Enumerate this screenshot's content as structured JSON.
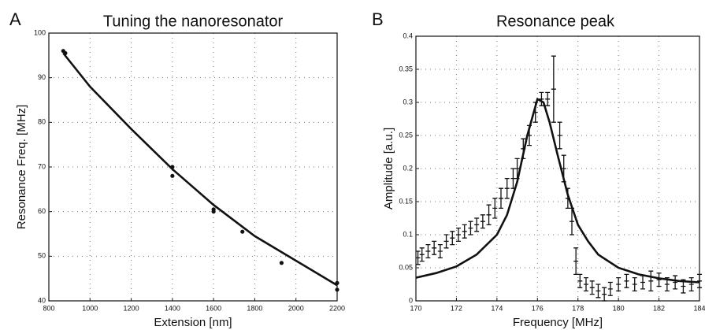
{
  "chart_data": [
    {
      "type": "scatter",
      "label": "A",
      "title": "Tuning the nanoresonator",
      "xlabel": "Extension [nm]",
      "ylabel": "Resonance Freq. [MHz]",
      "xlim": [
        800,
        2200
      ],
      "ylim": [
        40,
        100
      ],
      "xticks": [
        800,
        1000,
        1200,
        1400,
        1600,
        1800,
        2000,
        2200
      ],
      "yticks": [
        40,
        50,
        60,
        70,
        80,
        90,
        100
      ],
      "grid": true,
      "series": [
        {
          "type": "scatter",
          "color": "#111111",
          "x": [
            870,
            880,
            1400,
            1400,
            1600,
            1600,
            1740,
            1930,
            2200,
            2200
          ],
          "values": [
            96,
            95.5,
            70,
            68,
            60.5,
            60,
            55.5,
            48.5,
            44,
            42.5
          ]
        },
        {
          "type": "line",
          "color": "#111111",
          "x": [
            870,
            1000,
            1200,
            1400,
            1600,
            1800,
            2000,
            2200
          ],
          "values": [
            95.5,
            88,
            78.5,
            69.5,
            61.5,
            54.5,
            49,
            43.5
          ]
        }
      ]
    },
    {
      "type": "errorbar",
      "label": "B",
      "title": "Resonance peak",
      "xlabel": "Frequency [MHz]",
      "ylabel": "Amplitude [a.u.]",
      "xlim": [
        170,
        184
      ],
      "ylim": [
        0,
        0.4
      ],
      "xticks": [
        170,
        172,
        174,
        176,
        178,
        180,
        182,
        184
      ],
      "yticks": [
        0,
        0.05,
        0.1,
        0.15,
        0.2,
        0.25,
        0.3,
        0.35,
        0.4
      ],
      "grid": true,
      "series": [
        {
          "type": "errorbar",
          "color": "#111111",
          "x": [
            170.1,
            170.3,
            170.6,
            170.9,
            171.2,
            171.5,
            171.8,
            172.1,
            172.4,
            172.7,
            173.0,
            173.3,
            173.6,
            173.9,
            174.2,
            174.5,
            174.8,
            175.0,
            175.3,
            175.6,
            175.9,
            176.2,
            176.5,
            176.8,
            177.1,
            177.3,
            177.5,
            177.7,
            177.9,
            178.1,
            178.4,
            178.7,
            179.0,
            179.3,
            179.6,
            180.0,
            180.4,
            180.8,
            181.2,
            181.6,
            182.0,
            182.4,
            182.8,
            183.2,
            183.6,
            184.0
          ],
          "values": [
            0.065,
            0.07,
            0.075,
            0.08,
            0.075,
            0.09,
            0.095,
            0.1,
            0.105,
            0.11,
            0.115,
            0.12,
            0.13,
            0.14,
            0.155,
            0.17,
            0.185,
            0.2,
            0.23,
            0.25,
            0.285,
            0.305,
            0.305,
            0.32,
            0.25,
            0.2,
            0.155,
            0.12,
            0.06,
            0.03,
            0.025,
            0.02,
            0.015,
            0.01,
            0.018,
            0.025,
            0.03,
            0.025,
            0.028,
            0.03,
            0.032,
            0.025,
            0.028,
            0.022,
            0.025,
            0.03
          ],
          "errors": [
            0.01,
            0.01,
            0.01,
            0.01,
            0.01,
            0.01,
            0.01,
            0.01,
            0.01,
            0.01,
            0.01,
            0.01,
            0.015,
            0.015,
            0.015,
            0.015,
            0.015,
            0.015,
            0.015,
            0.015,
            0.015,
            0.01,
            0.01,
            0.05,
            0.02,
            0.02,
            0.015,
            0.02,
            0.02,
            0.01,
            0.01,
            0.01,
            0.01,
            0.01,
            0.01,
            0.01,
            0.01,
            0.01,
            0.01,
            0.015,
            0.01,
            0.01,
            0.01,
            0.01,
            0.01,
            0.01
          ]
        },
        {
          "type": "line",
          "color": "#111111",
          "x": [
            170,
            171,
            172,
            173,
            174,
            174.5,
            175,
            175.5,
            176,
            176.3,
            176.6,
            177,
            177.5,
            178,
            178.5,
            179,
            180,
            181,
            182,
            183,
            184
          ],
          "values": [
            0.035,
            0.042,
            0.052,
            0.07,
            0.1,
            0.13,
            0.18,
            0.25,
            0.305,
            0.3,
            0.27,
            0.22,
            0.16,
            0.115,
            0.09,
            0.07,
            0.05,
            0.04,
            0.034,
            0.03,
            0.028
          ]
        }
      ]
    }
  ]
}
